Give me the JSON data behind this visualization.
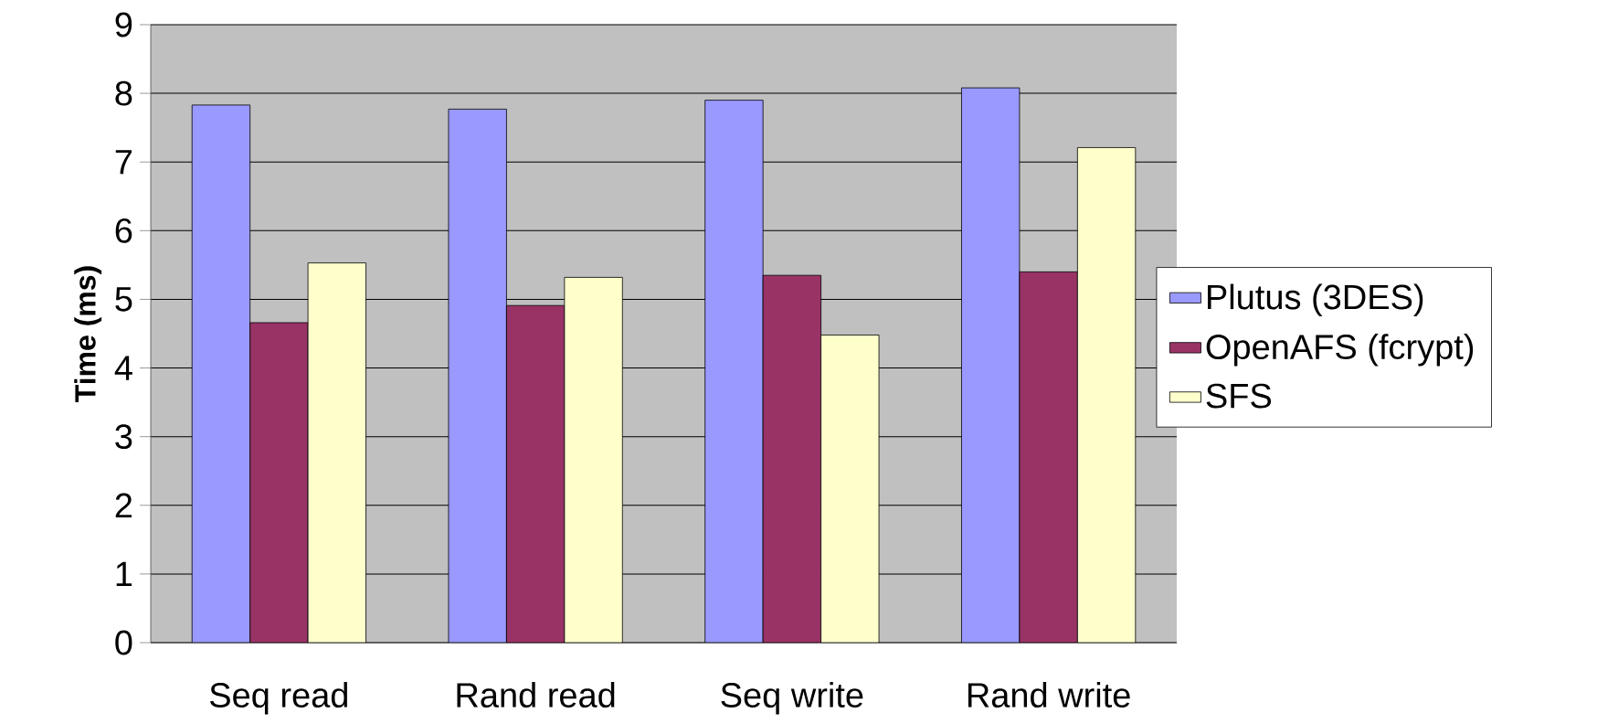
{
  "chart_data": {
    "type": "bar",
    "ylabel": "**Time (ms)**",
    "categories": [
      "Seq read",
      "Rand read",
      "Seq write",
      "Rand write"
    ],
    "series": [
      {
        "name": "Plutus (3DES)",
        "color": "#9999ff",
        "values": [
          7.83,
          7.77,
          7.9,
          8.08
        ]
      },
      {
        "name": "OpenAFS (fcrypt)",
        "color": "#993366",
        "values": [
          4.66,
          4.91,
          5.35,
          5.4
        ]
      },
      {
        "name": "SFS",
        "color": "#ffffcc",
        "values": [
          5.53,
          5.32,
          4.48,
          7.21
        ]
      }
    ],
    "ylim": [
      0,
      9
    ],
    "yticks": [
      0,
      1,
      2,
      3,
      4,
      5,
      6,
      7,
      8,
      9
    ],
    "grid": "y",
    "legend": "right"
  }
}
